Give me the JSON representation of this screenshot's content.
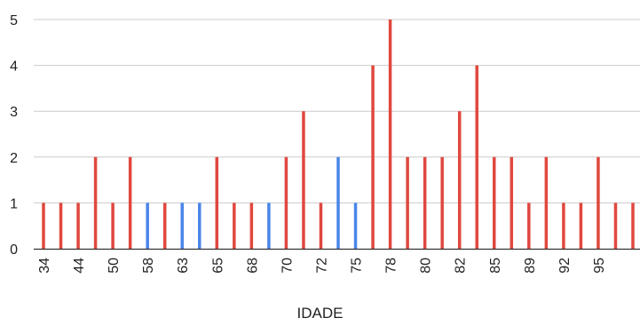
{
  "chart_data": {
    "type": "bar",
    "title": "",
    "xlabel": "IDADE",
    "ylabel": "",
    "ylim": [
      0,
      5
    ],
    "yticks": [
      0,
      1,
      2,
      3,
      4,
      5
    ],
    "grid": true,
    "legend": "none",
    "colors": {
      "primary": "#e0483e",
      "secondary": "#4a86e8",
      "grid": "#cccccc",
      "axis": "#333333",
      "text": "#222222"
    },
    "x_tick_labels": [
      "34",
      "44",
      "50",
      "58",
      "63",
      "65",
      "68",
      "70",
      "72",
      "75",
      "78",
      "80",
      "82",
      "85",
      "89",
      "92",
      "95"
    ],
    "bars": [
      {
        "series": 0,
        "value": 1
      },
      {
        "series": 0,
        "value": 1
      },
      {
        "series": 0,
        "value": 1
      },
      {
        "series": 0,
        "value": 2
      },
      {
        "series": 0,
        "value": 1
      },
      {
        "series": 0,
        "value": 2
      },
      {
        "series": 1,
        "value": 1
      },
      {
        "series": 0,
        "value": 1
      },
      {
        "series": 1,
        "value": 1
      },
      {
        "series": 1,
        "value": 1
      },
      {
        "series": 0,
        "value": 2
      },
      {
        "series": 0,
        "value": 1
      },
      {
        "series": 0,
        "value": 1
      },
      {
        "series": 1,
        "value": 1
      },
      {
        "series": 0,
        "value": 2
      },
      {
        "series": 0,
        "value": 3
      },
      {
        "series": 0,
        "value": 1
      },
      {
        "series": 1,
        "value": 2
      },
      {
        "series": 1,
        "value": 1
      },
      {
        "series": 0,
        "value": 4
      },
      {
        "series": 0,
        "value": 5
      },
      {
        "series": 0,
        "value": 2
      },
      {
        "series": 0,
        "value": 2
      },
      {
        "series": 0,
        "value": 2
      },
      {
        "series": 0,
        "value": 3
      },
      {
        "series": 0,
        "value": 4
      },
      {
        "series": 0,
        "value": 2
      },
      {
        "series": 0,
        "value": 2
      },
      {
        "series": 0,
        "value": 1
      },
      {
        "series": 0,
        "value": 2
      },
      {
        "series": 0,
        "value": 1
      },
      {
        "series": 0,
        "value": 1
      },
      {
        "series": 0,
        "value": 2
      },
      {
        "series": 0,
        "value": 1
      },
      {
        "series": 0,
        "value": 1
      }
    ]
  }
}
